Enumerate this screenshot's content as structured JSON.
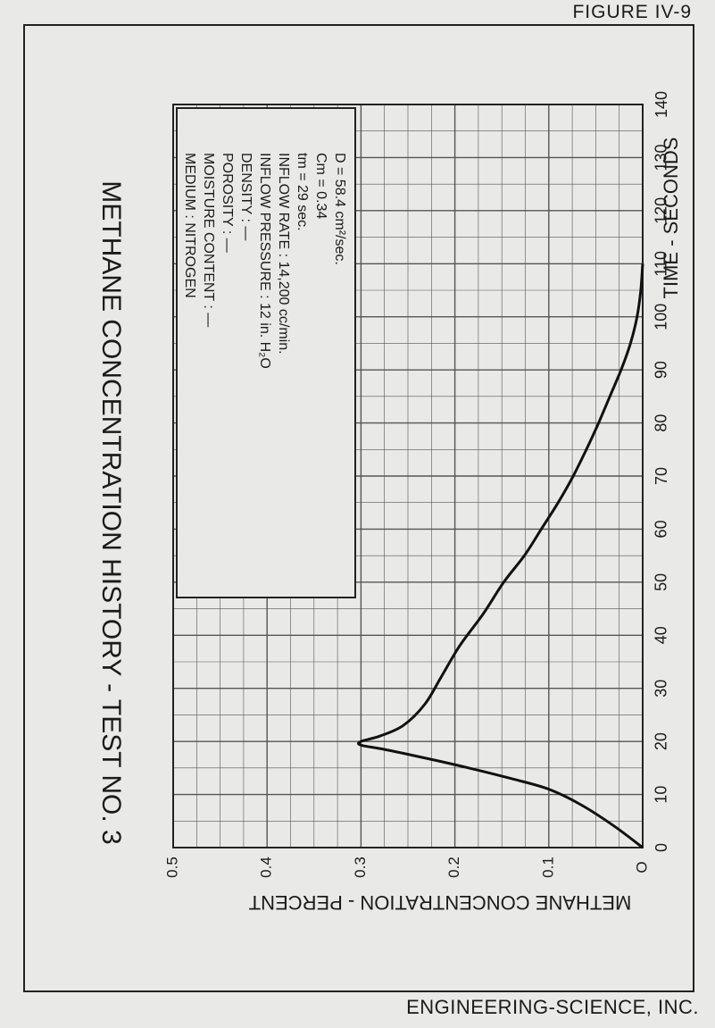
{
  "figure_label": "FIGURE IV-9",
  "company": "ENGINEERING-SCIENCE, INC.",
  "chart_data": {
    "type": "line",
    "title": "METHANE CONCENTRATION HISTORY - TEST NO. 3",
    "xlabel": "TIME - SECONDS",
    "ylabel": "METHANE CONCENTRATION - PERCENT",
    "xlim": [
      0,
      140
    ],
    "ylim": [
      0,
      0.5
    ],
    "x_ticks": [
      "0",
      "10",
      "20",
      "30",
      "40",
      "50",
      "60",
      "70",
      "80",
      "90",
      "100",
      "110",
      "120",
      "130",
      "140"
    ],
    "y_ticks": [
      "O",
      "0.1",
      "0.2",
      "0.3",
      "0.4",
      "0.5"
    ],
    "grid": true,
    "series": [
      {
        "points": [
          [
            0,
            0.0
          ],
          [
            4,
            0.03
          ],
          [
            8,
            0.065
          ],
          [
            11,
            0.1
          ],
          [
            13,
            0.14
          ],
          [
            15,
            0.185
          ],
          [
            17,
            0.235
          ],
          [
            18.5,
            0.275
          ],
          [
            19.3,
            0.3
          ],
          [
            20,
            0.3
          ],
          [
            21,
            0.28
          ],
          [
            23,
            0.255
          ],
          [
            27,
            0.232
          ],
          [
            32,
            0.215
          ],
          [
            38,
            0.195
          ],
          [
            44,
            0.17
          ],
          [
            50,
            0.148
          ],
          [
            55,
            0.126
          ],
          [
            60,
            0.108
          ],
          [
            65,
            0.09
          ],
          [
            70,
            0.074
          ],
          [
            75,
            0.06
          ],
          [
            80,
            0.047
          ],
          [
            85,
            0.035
          ],
          [
            90,
            0.023
          ],
          [
            95,
            0.013
          ],
          [
            100,
            0.006
          ],
          [
            105,
            0.002
          ],
          [
            110,
            0.0
          ]
        ]
      }
    ],
    "legend": {
      "items": [
        {
          "label": "D",
          "value": "= 58.4 cm²/sec."
        },
        {
          "label": "Cm",
          "value": "= 0.34"
        },
        {
          "label": "tm",
          "value": "= 29 sec."
        },
        {
          "label": "INFLOW RATE",
          "value": ": 14,200 cc/min."
        },
        {
          "label": "INFLOW PRESSURE",
          "value": ": 12 in. H₂O"
        },
        {
          "label": "DENSITY",
          "value": ": —"
        },
        {
          "label": "POROSITY",
          "value": ": —"
        },
        {
          "label": "MOISTURE CONTENT",
          "value": ": —"
        },
        {
          "label": "MEDIUM",
          "value": ": NITROGEN"
        }
      ]
    }
  }
}
